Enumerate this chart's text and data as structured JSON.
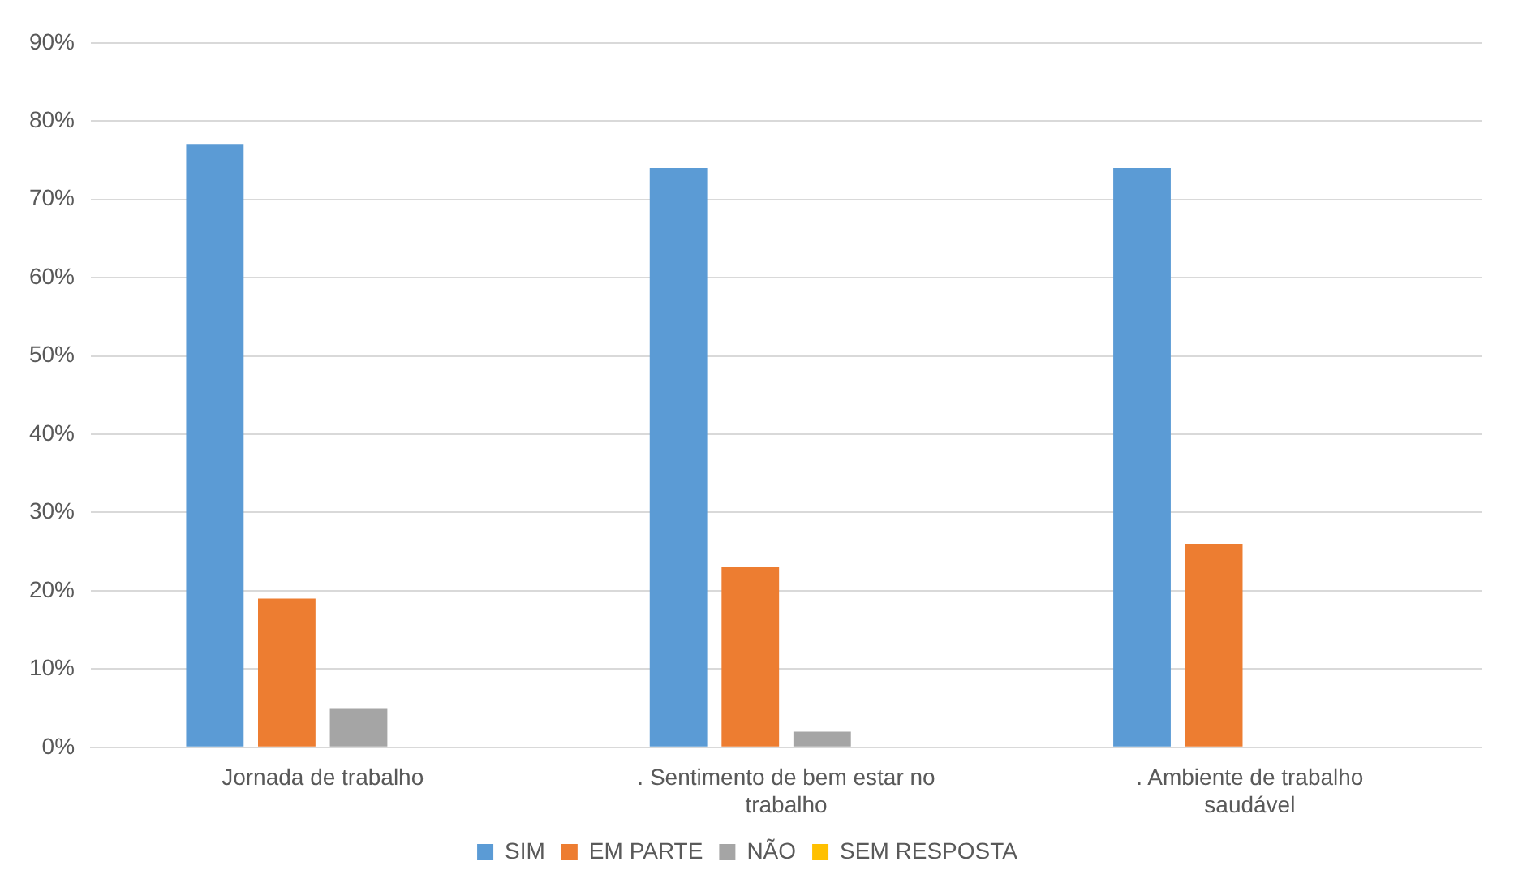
{
  "chart_data": {
    "type": "bar",
    "categories": [
      "Jornada de trabalho",
      ". Sentimento de bem estar no trabalho",
      ". Ambiente de trabalho saudável"
    ],
    "series": [
      {
        "name": "SIM",
        "color": "#5b9bd5",
        "values": [
          77,
          74,
          74
        ]
      },
      {
        "name": "EM PARTE",
        "color": "#ed7d31",
        "values": [
          19,
          23,
          26
        ]
      },
      {
        "name": "NÃO",
        "color": "#a5a5a5",
        "values": [
          5,
          2,
          0
        ]
      },
      {
        "name": "SEM RESPOSTA",
        "color": "#ffc000",
        "values": [
          0,
          0,
          0
        ]
      }
    ],
    "ylim": [
      0,
      90
    ],
    "yticks": [
      {
        "value": 0,
        "label": "0%"
      },
      {
        "value": 10,
        "label": "10%"
      },
      {
        "value": 20,
        "label": "20%"
      },
      {
        "value": 30,
        "label": "30%"
      },
      {
        "value": 40,
        "label": "40%"
      },
      {
        "value": 50,
        "label": "50%"
      },
      {
        "value": 60,
        "label": "60%"
      },
      {
        "value": 70,
        "label": "70%"
      },
      {
        "value": 80,
        "label": "80%"
      },
      {
        "value": 90,
        "label": "90%"
      }
    ],
    "grid": "y",
    "legend": "bottom"
  }
}
